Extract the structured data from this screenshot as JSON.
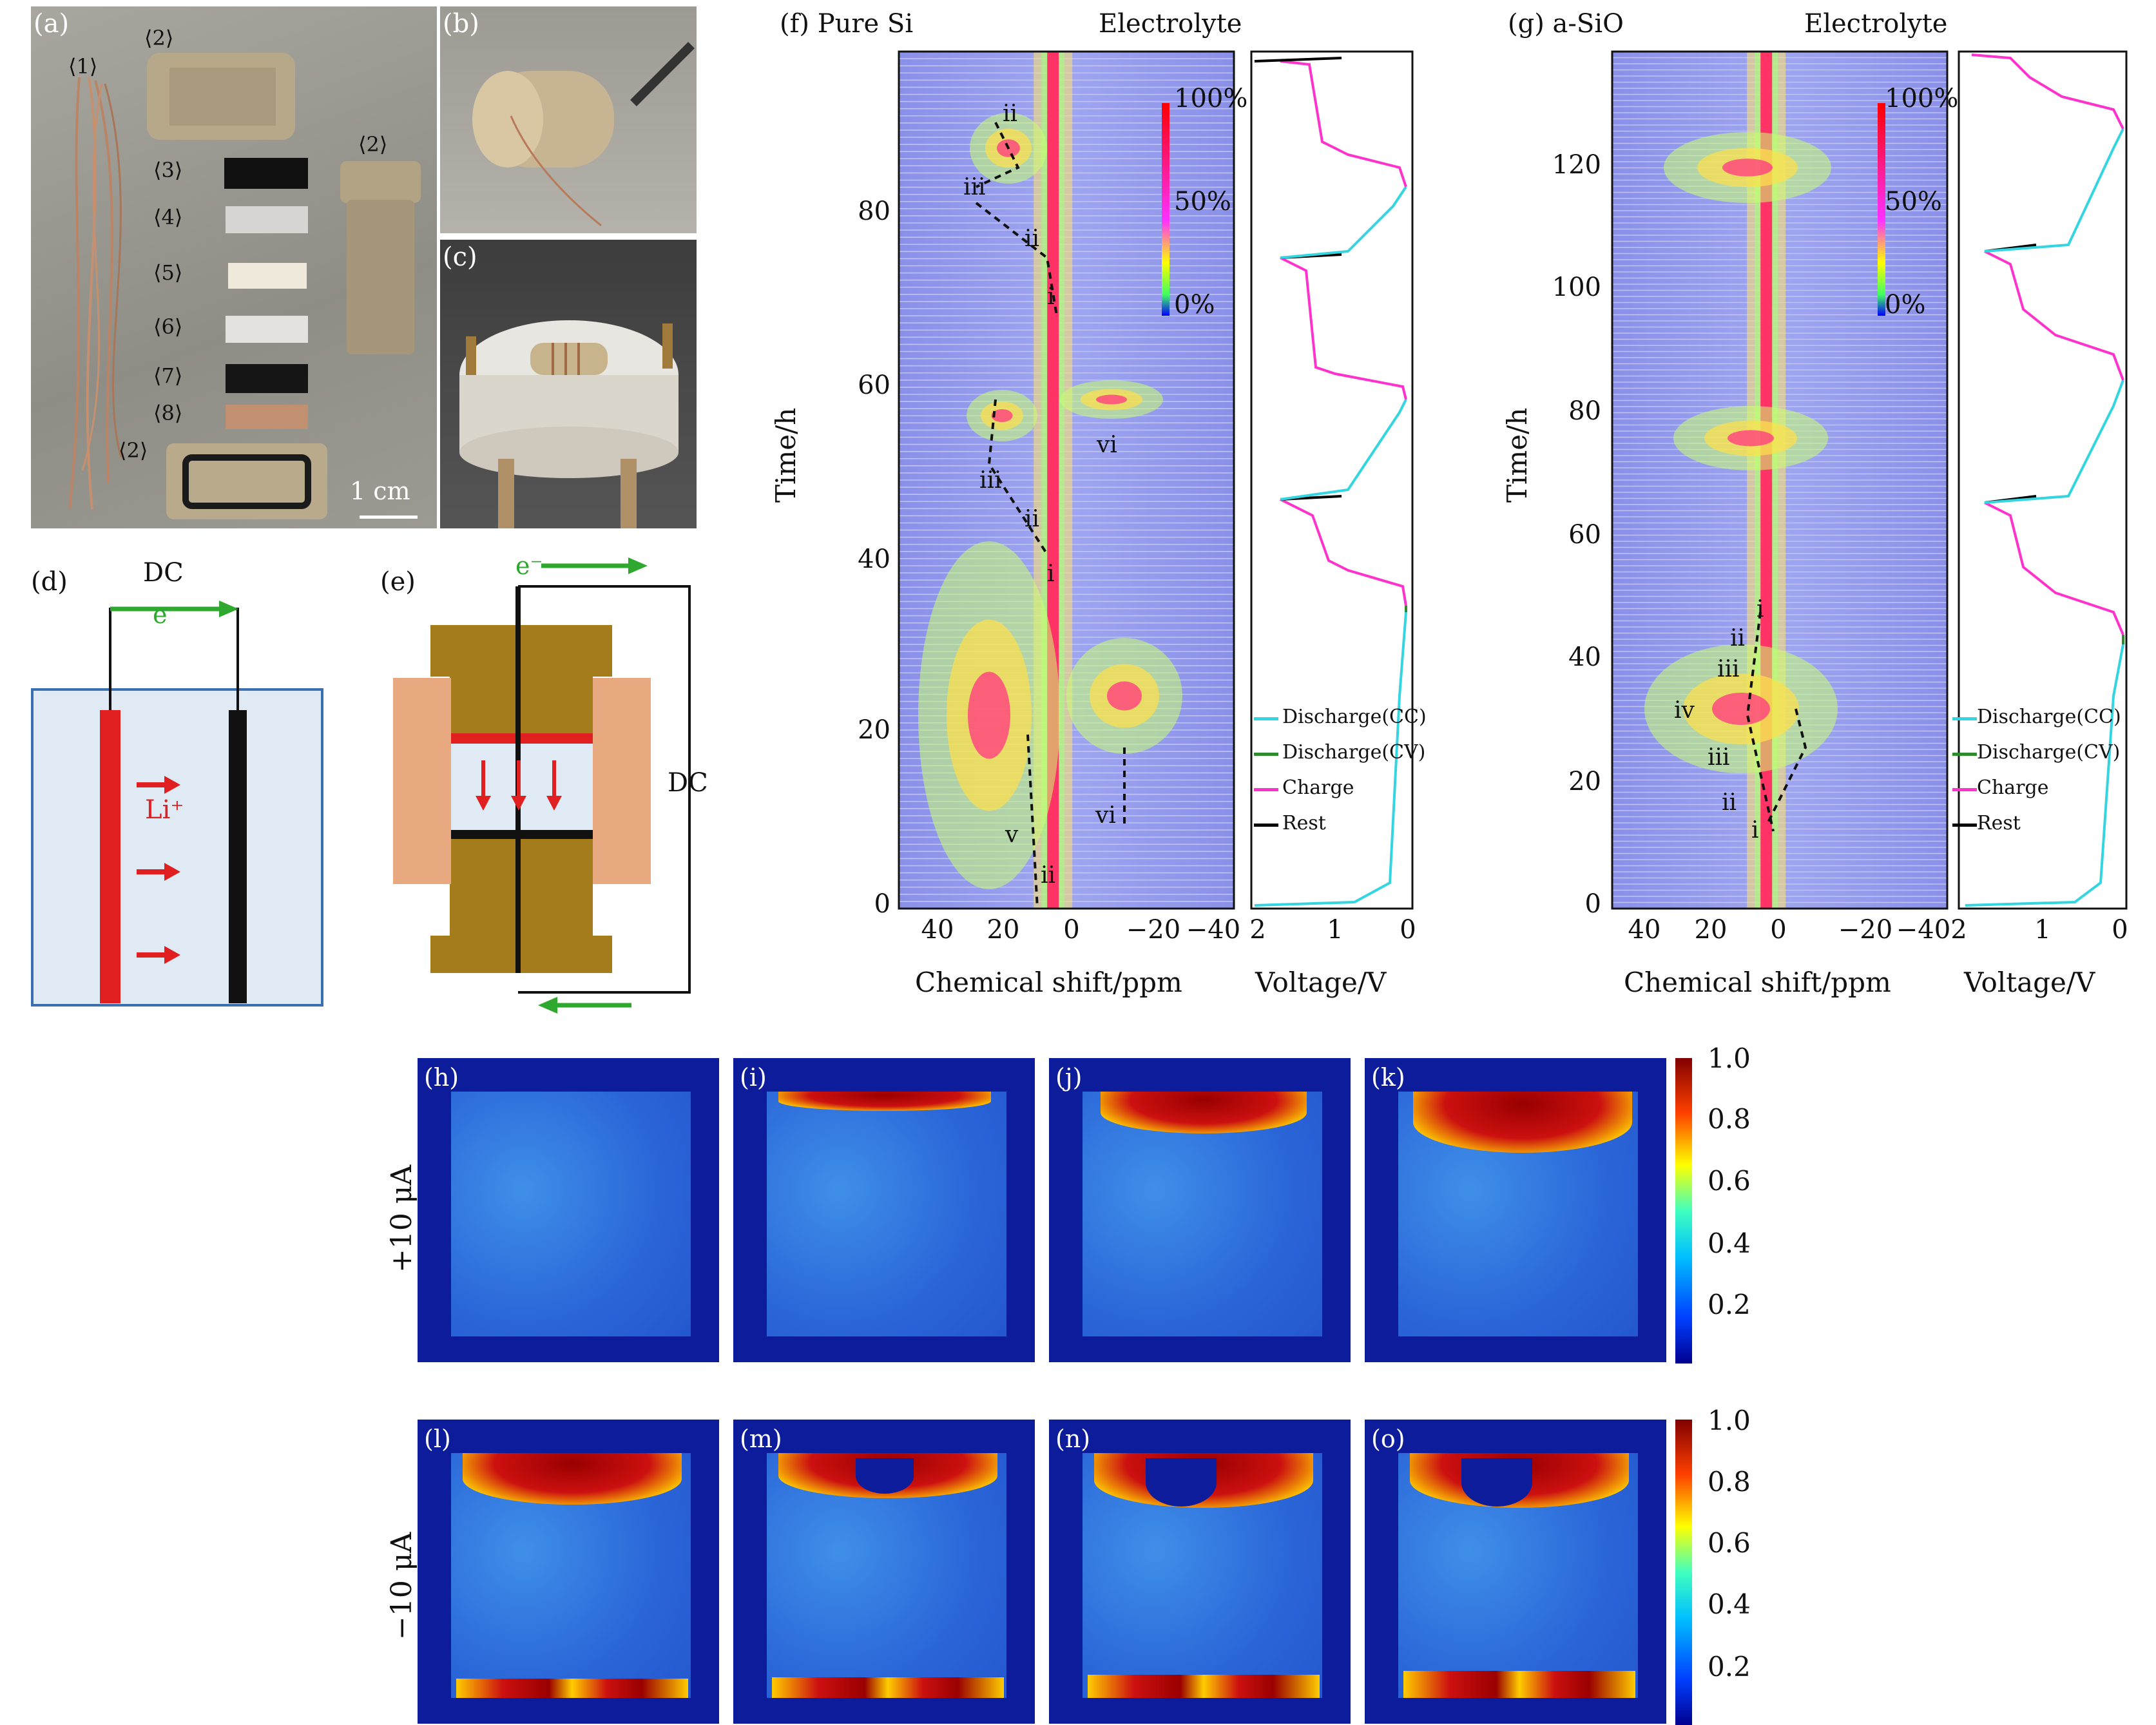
{
  "panel_a": {
    "label": "(a)",
    "parts": [
      "⟨1⟩",
      "⟨2⟩",
      "⟨2⟩",
      "⟨3⟩",
      "⟨4⟩",
      "⟨5⟩",
      "⟨6⟩",
      "⟨7⟩",
      "⟨8⟩",
      "⟨2⟩"
    ],
    "scale": "1 cm"
  },
  "panel_b": {
    "label": "(b)"
  },
  "panel_c": {
    "label": "(c)"
  },
  "panel_d": {
    "label": "(d)",
    "dc": "DC",
    "electron": "e⁻",
    "ion": "Li⁺"
  },
  "panel_e": {
    "label": "(e)",
    "dc": "DC",
    "electron": "e⁻"
  },
  "panel_f": {
    "label": "(f)",
    "title": "Pure Si",
    "electrolyte": "Electrolyte",
    "ylabel": "Time/h",
    "xlabel": "Chemical shift/ppm",
    "vlabel": "Voltage/V",
    "yticks": [
      "0",
      "20",
      "40",
      "60",
      "80"
    ],
    "xticks": [
      "40",
      "20",
      "0",
      "−20",
      "−40"
    ],
    "vticks": [
      "2",
      "1",
      "0"
    ],
    "colorbar": [
      "100%",
      "50%",
      "0%"
    ],
    "annotations": [
      "ii",
      "iii",
      "ii",
      "i",
      "iii",
      "ii",
      "i",
      "vi",
      "v",
      "ii",
      "vi"
    ],
    "legend": [
      "Discharge(CC)",
      "Discharge(CV)",
      "Charge",
      "Rest"
    ]
  },
  "panel_g": {
    "label": "(g)",
    "title": "a-SiO",
    "electrolyte": "Electrolyte",
    "ylabel": "Time/h",
    "xlabel": "Chemical shift/ppm",
    "vlabel": "Voltage/V",
    "yticks": [
      "0",
      "20",
      "40",
      "60",
      "80",
      "100",
      "120"
    ],
    "xticks": [
      "40",
      "20",
      "0",
      "−20",
      "−40"
    ],
    "vticks": [
      "2",
      "1",
      "0"
    ],
    "colorbar": [
      "100%",
      "50%",
      "0%"
    ],
    "annotations": [
      "i",
      "ii",
      "iii",
      "iv",
      "iii",
      "ii",
      "i"
    ],
    "legend": [
      "Discharge(CC)",
      "Discharge(CV)",
      "Charge",
      "Rest"
    ]
  },
  "mri": {
    "row1_label": "+10 μA",
    "row2_label": "−10 μA",
    "row1": [
      "(h)",
      "(i)",
      "(j)",
      "(k)"
    ],
    "row2": [
      "(l)",
      "(m)",
      "(n)",
      "(o)"
    ],
    "cbar": [
      "1.0",
      "0.8",
      "0.6",
      "0.4",
      "0.2"
    ]
  },
  "colors": {
    "discharge_cc": "#33d6e0",
    "discharge_cv": "#2e8b2e",
    "charge": "#ff33cc",
    "rest": "#000000",
    "electrode_red": "#e02020",
    "arrow_green": "#2ea82e",
    "brass": "#a57c1b",
    "pad": "#e8a880"
  }
}
